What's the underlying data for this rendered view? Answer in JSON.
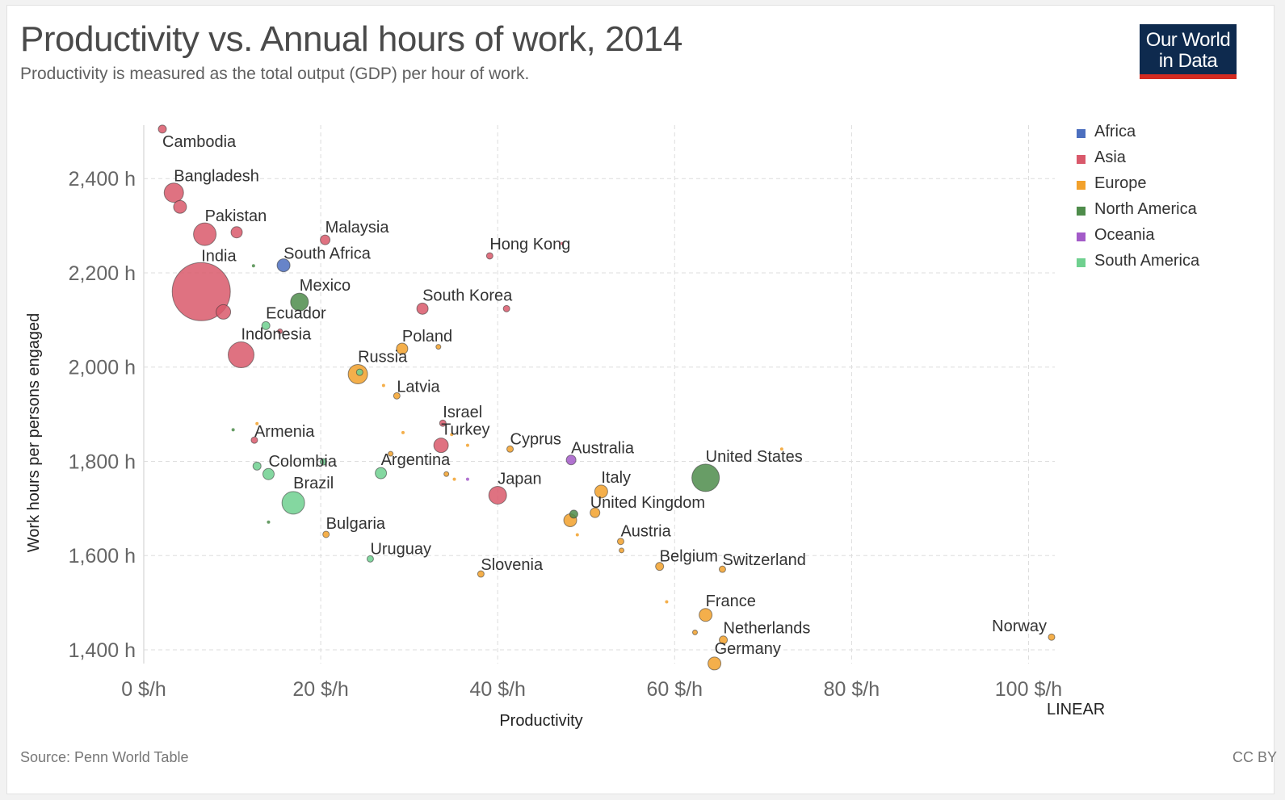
{
  "header": {
    "title": "Productivity vs. Annual hours of work, 2014",
    "subtitle": "Productivity is measured as the total output (GDP) per hour of work."
  },
  "logo": {
    "line1": "Our World",
    "line2": "in Data",
    "bg_color": "#0e2a4e",
    "accent_color": "#d42b21"
  },
  "footer": {
    "source": "Source: Penn World Table",
    "license": "CC BY"
  },
  "scale_toggle": "LINEAR",
  "legend": [
    {
      "name": "Africa",
      "color": "#4c6fbf"
    },
    {
      "name": "Asia",
      "color": "#d9596b"
    },
    {
      "name": "Europe",
      "color": "#f2a12c"
    },
    {
      "name": "North America",
      "color": "#4e8c4b"
    },
    {
      "name": "Oceania",
      "color": "#a35bc8"
    },
    {
      "name": "South America",
      "color": "#6fd08f"
    }
  ],
  "chart_data": {
    "type": "scatter",
    "title": "Productivity vs. Annual hours of work, 2014",
    "xlabel": "Productivity",
    "ylabel": "Work hours per persons engaged",
    "xlim": [
      0,
      103
    ],
    "ylim": [
      1380,
      2520
    ],
    "x_ticks": [
      0,
      20,
      40,
      60,
      80,
      100
    ],
    "x_tick_labels": [
      "0 $/h",
      "20 $/h",
      "40 $/h",
      "60 $/h",
      "80 $/h",
      "100 $/h"
    ],
    "y_ticks": [
      1400,
      1600,
      1800,
      2000,
      2200,
      2400
    ],
    "y_tick_labels": [
      "1,400 h",
      "1,600 h",
      "1,800 h",
      "2,000 h",
      "2,200 h",
      "2,400 h"
    ],
    "grid": true,
    "legend_position": "right",
    "points": [
      {
        "x": 2.1,
        "y": 2505,
        "r": 5,
        "region": "Asia",
        "label": "Cambodia",
        "label_size": 20
      },
      {
        "x": 3.4,
        "y": 2370,
        "r": 12,
        "region": "Asia",
        "label": "Bangladesh",
        "label_size": 20
      },
      {
        "x": 4.1,
        "y": 2340,
        "r": 8,
        "region": "Asia",
        "label": ""
      },
      {
        "x": 6.9,
        "y": 2282,
        "r": 14,
        "region": "Asia",
        "label": "Pakistan",
        "label_size": 20
      },
      {
        "x": 10.5,
        "y": 2286,
        "r": 7,
        "region": "Asia",
        "label": ""
      },
      {
        "x": 6.5,
        "y": 2160,
        "r": 36,
        "region": "Asia",
        "label": "India",
        "label_size": 26
      },
      {
        "x": 9.0,
        "y": 2117,
        "r": 9,
        "region": "Asia",
        "label": ""
      },
      {
        "x": 11.0,
        "y": 2026,
        "r": 16,
        "region": "Asia",
        "label": "Indonesia",
        "label_size": 20
      },
      {
        "x": 15.8,
        "y": 2216,
        "r": 8,
        "region": "Africa",
        "label": "South Africa",
        "label_size": 20
      },
      {
        "x": 12.4,
        "y": 2215,
        "r": 2,
        "region": "North America",
        "label": ""
      },
      {
        "x": 17.6,
        "y": 2138,
        "r": 11,
        "region": "North America",
        "label": "Mexico",
        "label_size": 20
      },
      {
        "x": 13.8,
        "y": 2088,
        "r": 5,
        "region": "South America",
        "label": "Ecuador",
        "label_size": 20
      },
      {
        "x": 15.4,
        "y": 2076,
        "r": 3,
        "region": "Asia",
        "label": ""
      },
      {
        "x": 20.5,
        "y": 2270,
        "r": 6,
        "region": "Asia",
        "label": "Malaysia",
        "label_size": 20
      },
      {
        "x": 39.1,
        "y": 2236,
        "r": 4,
        "region": "Asia",
        "label": "Hong Kong",
        "label_size": 20
      },
      {
        "x": 47.3,
        "y": 2262,
        "r": 2,
        "region": "Asia",
        "label": ""
      },
      {
        "x": 31.5,
        "y": 2124,
        "r": 7,
        "region": "Asia",
        "label": "South Korea",
        "label_size": 20
      },
      {
        "x": 41.0,
        "y": 2124,
        "r": 4,
        "region": "Asia",
        "label": ""
      },
      {
        "x": 29.2,
        "y": 2039,
        "r": 7,
        "region": "Europe",
        "label": "Poland",
        "label_size": 20
      },
      {
        "x": 33.3,
        "y": 2043,
        "r": 3,
        "region": "Europe",
        "label": ""
      },
      {
        "x": 24.2,
        "y": 1985,
        "r": 12,
        "region": "Europe",
        "label": "Russia",
        "label_size": 20
      },
      {
        "x": 24.4,
        "y": 1989,
        "r": 4,
        "region": "South America",
        "label": ""
      },
      {
        "x": 27.1,
        "y": 1961,
        "r": 2,
        "region": "Europe",
        "label": ""
      },
      {
        "x": 28.6,
        "y": 1939,
        "r": 4,
        "region": "Europe",
        "label": "Latvia",
        "label_size": 20
      },
      {
        "x": 33.8,
        "y": 1881,
        "r": 4,
        "region": "Asia",
        "label": "Israel",
        "label_size": 20
      },
      {
        "x": 34.8,
        "y": 1857,
        "r": 2,
        "region": "Europe",
        "label": ""
      },
      {
        "x": 33.6,
        "y": 1834,
        "r": 9,
        "region": "Asia",
        "label": "Turkey",
        "label_size": 20
      },
      {
        "x": 36.6,
        "y": 1834,
        "r": 2,
        "region": "Europe",
        "label": ""
      },
      {
        "x": 29.3,
        "y": 1861,
        "r": 2,
        "region": "Europe",
        "label": ""
      },
      {
        "x": 27.9,
        "y": 1816,
        "r": 3,
        "region": "Europe",
        "label": ""
      },
      {
        "x": 41.4,
        "y": 1826,
        "r": 4,
        "region": "Europe",
        "label": "Cyprus",
        "label_size": 20
      },
      {
        "x": 48.3,
        "y": 1803,
        "r": 6,
        "region": "Oceania",
        "label": "Australia",
        "label_size": 20
      },
      {
        "x": 63.5,
        "y": 1765,
        "r": 17,
        "region": "North America",
        "label": "United States",
        "label_size": 22
      },
      {
        "x": 72.1,
        "y": 1826,
        "r": 2,
        "region": "Europe",
        "label": ""
      },
      {
        "x": 10.1,
        "y": 1867,
        "r": 2,
        "region": "North America",
        "label": ""
      },
      {
        "x": 12.5,
        "y": 1845,
        "r": 4,
        "region": "Asia",
        "label": "Armenia",
        "label_size": 20
      },
      {
        "x": 12.8,
        "y": 1880,
        "r": 2,
        "region": "Europe",
        "label": ""
      },
      {
        "x": 12.8,
        "y": 1790,
        "r": 5,
        "region": "South America",
        "label": ""
      },
      {
        "x": 14.1,
        "y": 1773,
        "r": 7,
        "region": "South America",
        "label": "Colombia",
        "label_size": 20
      },
      {
        "x": 20.3,
        "y": 1799,
        "r": 4,
        "region": "South America",
        "label": ""
      },
      {
        "x": 26.8,
        "y": 1775,
        "r": 7,
        "region": "South America",
        "label": "Argentina",
        "label_size": 20
      },
      {
        "x": 34.2,
        "y": 1773,
        "r": 3,
        "region": "Europe",
        "label": ""
      },
      {
        "x": 35.1,
        "y": 1762,
        "r": 2,
        "region": "Europe",
        "label": ""
      },
      {
        "x": 36.6,
        "y": 1762,
        "r": 2,
        "region": "Oceania",
        "label": ""
      },
      {
        "x": 16.9,
        "y": 1712,
        "r": 14,
        "region": "South America",
        "label": "Brazil",
        "label_size": 20
      },
      {
        "x": 14.1,
        "y": 1671,
        "r": 2,
        "region": "North America",
        "label": ""
      },
      {
        "x": 40.0,
        "y": 1728,
        "r": 11,
        "region": "Asia",
        "label": "Japan",
        "label_size": 20
      },
      {
        "x": 51.7,
        "y": 1736,
        "r": 8,
        "region": "Europe",
        "label": "Italy",
        "label_size": 20
      },
      {
        "x": 48.6,
        "y": 1688,
        "r": 5,
        "region": "North America",
        "label": ""
      },
      {
        "x": 51.0,
        "y": 1691,
        "r": 6,
        "region": "Europe",
        "label": "United Kingdom",
        "label_size": 20
      },
      {
        "x": 48.2,
        "y": 1675,
        "r": 8,
        "region": "Europe",
        "label": ""
      },
      {
        "x": 49.0,
        "y": 1644,
        "r": 2,
        "region": "Europe",
        "label": ""
      },
      {
        "x": 20.6,
        "y": 1645,
        "r": 4,
        "region": "Europe",
        "label": "Bulgaria",
        "label_size": 20
      },
      {
        "x": 25.6,
        "y": 1593,
        "r": 4,
        "region": "South America",
        "label": "Uruguay",
        "label_size": 20
      },
      {
        "x": 38.1,
        "y": 1561,
        "r": 4,
        "region": "Europe",
        "label": "Slovenia",
        "label_size": 20
      },
      {
        "x": 53.9,
        "y": 1630,
        "r": 4,
        "region": "Europe",
        "label": "Austria",
        "label_size": 20
      },
      {
        "x": 54.0,
        "y": 1611,
        "r": 3,
        "region": "Europe",
        "label": ""
      },
      {
        "x": 58.3,
        "y": 1577,
        "r": 5,
        "region": "Europe",
        "label": "Belgium",
        "label_size": 20
      },
      {
        "x": 65.4,
        "y": 1571,
        "r": 4,
        "region": "Europe",
        "label": "Switzerland",
        "label_size": 20
      },
      {
        "x": 59.1,
        "y": 1502,
        "r": 2,
        "region": "Europe",
        "label": ""
      },
      {
        "x": 63.5,
        "y": 1474,
        "r": 8,
        "region": "Europe",
        "label": "France",
        "label_size": 20
      },
      {
        "x": 62.3,
        "y": 1437,
        "r": 3,
        "region": "Europe",
        "label": ""
      },
      {
        "x": 65.5,
        "y": 1421,
        "r": 5,
        "region": "Europe",
        "label": "Netherlands",
        "label_size": 20
      },
      {
        "x": 64.5,
        "y": 1371,
        "r": 8,
        "region": "Europe",
        "label": "Germany",
        "label_size": 20
      },
      {
        "x": 102.6,
        "y": 1427,
        "r": 4,
        "region": "Europe",
        "label": "Norway",
        "label_size": 20
      }
    ]
  }
}
